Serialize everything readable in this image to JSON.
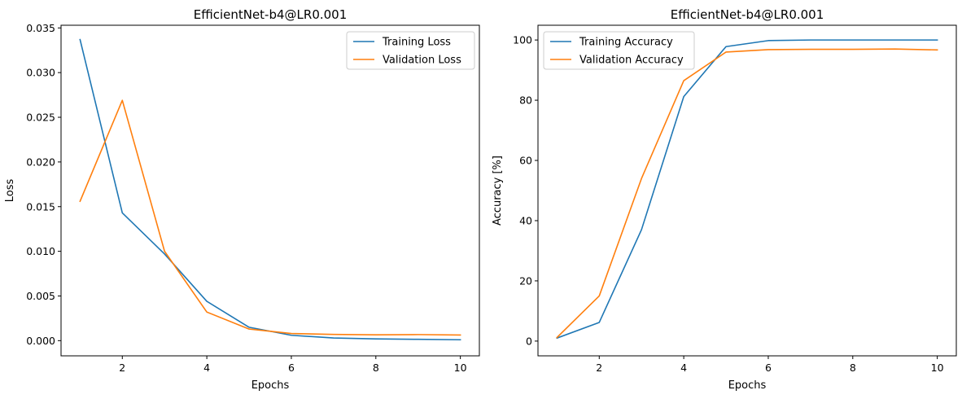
{
  "chart_data": [
    {
      "type": "line",
      "title": "EfficientNet-b4@LR0.001",
      "xlabel": "Epochs",
      "ylabel": "Loss",
      "xlim": [
        0.55,
        10.45
      ],
      "ylim": [
        -0.0017,
        0.0353
      ],
      "xticks": [
        2,
        4,
        6,
        8,
        10
      ],
      "yticks": [
        0.0,
        0.005,
        0.01,
        0.015,
        0.02,
        0.025,
        0.03,
        0.035
      ],
      "ytick_labels": [
        "0.000",
        "0.005",
        "0.010",
        "0.015",
        "0.020",
        "0.025",
        "0.030",
        "0.035"
      ],
      "grid": false,
      "legend": "top-right",
      "x": [
        1,
        2,
        3,
        4,
        5,
        6,
        7,
        8,
        9,
        10
      ],
      "series": [
        {
          "name": "Training Loss",
          "color": "#1f77b4",
          "values": [
            0.0337,
            0.0143,
            0.0097,
            0.0044,
            0.0015,
            0.0006,
            0.0003,
            0.0002,
            0.00015,
            0.0001
          ]
        },
        {
          "name": "Validation Loss",
          "color": "#ff7f0e",
          "values": [
            0.0156,
            0.0269,
            0.01,
            0.0032,
            0.0013,
            0.0008,
            0.0007,
            0.00065,
            0.00068,
            0.00063
          ]
        }
      ]
    },
    {
      "type": "line",
      "title": "EfficientNet-b4@LR0.001",
      "xlabel": "Epochs",
      "ylabel": "Accuracy [%]",
      "xlim": [
        0.55,
        10.45
      ],
      "ylim": [
        -4.9,
        104.9
      ],
      "xticks": [
        2,
        4,
        6,
        8,
        10
      ],
      "yticks": [
        0,
        20,
        40,
        60,
        80,
        100
      ],
      "ytick_labels": [
        "0",
        "20",
        "40",
        "60",
        "80",
        "100"
      ],
      "grid": false,
      "legend": "top-left",
      "x": [
        1,
        2,
        3,
        4,
        5,
        6,
        7,
        8,
        9,
        10
      ],
      "series": [
        {
          "name": "Training Accuracy",
          "color": "#1f77b4",
          "values": [
            1.0,
            6.2,
            37.0,
            81.2,
            97.8,
            99.8,
            100.0,
            100.0,
            100.0,
            100.0
          ]
        },
        {
          "name": "Validation Accuracy",
          "color": "#ff7f0e",
          "values": [
            1.2,
            15.0,
            54.0,
            86.5,
            96.0,
            96.8,
            96.9,
            96.9,
            97.0,
            96.7
          ]
        }
      ]
    }
  ]
}
